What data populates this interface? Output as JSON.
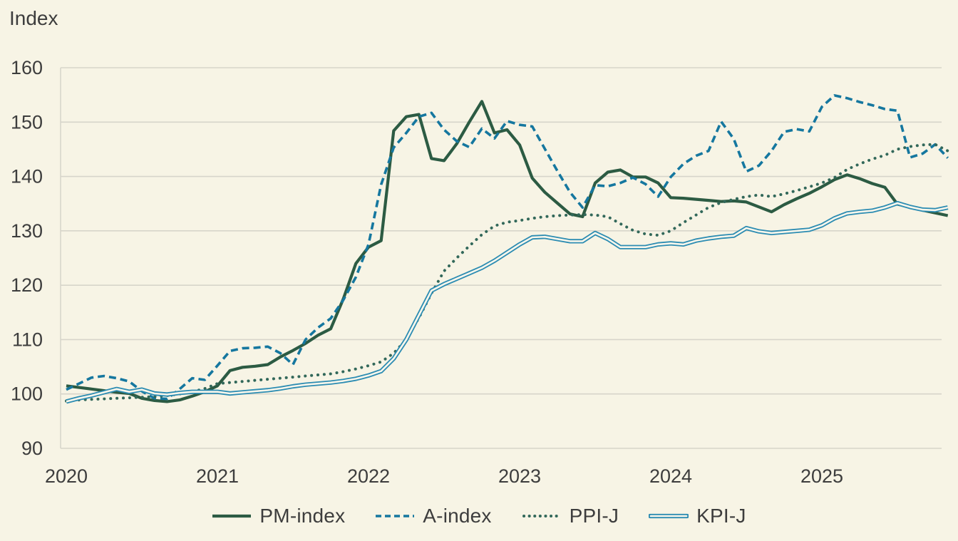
{
  "page": {
    "background_color": "#f7f4e5",
    "text_color": "#3d3d3d",
    "gridline_color": "#d7d5ca"
  },
  "chart_data": {
    "type": "line",
    "title": "Index",
    "xlabel": "",
    "ylabel": "Index",
    "grid": "horizontal",
    "legend_position": "bottom",
    "ylim": [
      90,
      160
    ],
    "y_ticks": [
      90,
      100,
      110,
      120,
      130,
      140,
      150,
      160
    ],
    "x_tick_labels": [
      "2020",
      "2021",
      "2022",
      "2023",
      "2024",
      "2025"
    ],
    "frequency": "monthly",
    "x_start": "2020-01",
    "x_end": "2025-11",
    "series": [
      {
        "name": "PM-index",
        "style": "solid",
        "color": "#2c5b43",
        "values": [
          101.5,
          101.2,
          100.9,
          100.6,
          100.3,
          100.1,
          99.2,
          98.8,
          98.6,
          98.9,
          99.6,
          100.4,
          101.5,
          104.3,
          104.9,
          105.1,
          105.4,
          106.8,
          108.0,
          109.3,
          110.8,
          112.0,
          117.5,
          124.0,
          127.0,
          128.2,
          148.4,
          151.0,
          151.4,
          143.3,
          142.9,
          146.0,
          150.0,
          153.8,
          148.0,
          148.6,
          145.8,
          139.7,
          137.1,
          135.1,
          133.1,
          132.6,
          138.8,
          140.8,
          141.2,
          139.9,
          139.9,
          138.8,
          136.1,
          136.0,
          135.8,
          135.6,
          135.4,
          135.5,
          135.3,
          134.4,
          133.5,
          134.8,
          135.9,
          136.9,
          138.1,
          139.4,
          140.3,
          139.6,
          138.7,
          138.0,
          134.9,
          134.4,
          133.8,
          133.3,
          132.8
        ]
      },
      {
        "name": "A-index",
        "style": "dashed",
        "color": "#15779f",
        "values": [
          100.8,
          101.9,
          103.0,
          103.3,
          102.9,
          102.3,
          100.5,
          99.2,
          99.1,
          100.9,
          102.9,
          102.6,
          105.2,
          107.9,
          108.4,
          108.5,
          108.7,
          107.5,
          105.4,
          110.0,
          112.2,
          113.9,
          117.3,
          121.5,
          127.5,
          138.5,
          145.3,
          148.0,
          151.0,
          151.7,
          148.6,
          146.5,
          145.4,
          148.8,
          147.0,
          150.2,
          149.5,
          149.2,
          145.1,
          141.0,
          137.1,
          134.3,
          138.4,
          138.2,
          138.8,
          139.8,
          138.6,
          136.3,
          139.9,
          142.3,
          143.8,
          144.7,
          150.1,
          146.9,
          140.9,
          142.0,
          144.7,
          148.2,
          148.7,
          148.3,
          152.8,
          154.9,
          154.4,
          153.7,
          153.1,
          152.4,
          152.1,
          143.5,
          144.2,
          145.9,
          143.4
        ]
      },
      {
        "name": "PPI-J",
        "style": "dotted",
        "color": "#32685a",
        "values": [
          98.7,
          98.9,
          99.0,
          99.1,
          99.2,
          99.3,
          99.4,
          99.5,
          99.7,
          100.0,
          100.4,
          101.0,
          101.9,
          102.1,
          102.3,
          102.5,
          102.7,
          102.9,
          103.1,
          103.3,
          103.5,
          103.7,
          104.1,
          104.6,
          105.2,
          105.9,
          107.5,
          110.0,
          114.0,
          118.5,
          122.6,
          125.0,
          127.2,
          129.3,
          130.9,
          131.6,
          131.9,
          132.3,
          132.6,
          132.8,
          132.9,
          133.0,
          132.9,
          132.6,
          131.3,
          130.1,
          129.4,
          129.2,
          130.0,
          131.5,
          132.9,
          134.3,
          135.2,
          135.8,
          136.3,
          136.6,
          136.3,
          136.8,
          137.4,
          138.1,
          138.8,
          139.8,
          141.3,
          142.3,
          143.2,
          143.9,
          145.0,
          145.5,
          145.8,
          145.9,
          144.7
        ]
      },
      {
        "name": "KPI-J",
        "style": "double",
        "color": "#2c8cb2",
        "inner_color": "#f9f7ec",
        "values": [
          98.6,
          99.2,
          99.7,
          100.3,
          100.9,
          100.4,
          100.8,
          100.1,
          99.9,
          100.2,
          100.4,
          100.4,
          100.4,
          100.1,
          100.3,
          100.5,
          100.7,
          101.0,
          101.4,
          101.7,
          101.9,
          102.1,
          102.4,
          102.8,
          103.4,
          104.2,
          106.5,
          110.0,
          114.5,
          119.0,
          120.2,
          121.2,
          122.2,
          123.2,
          124.5,
          126.0,
          127.5,
          128.8,
          128.9,
          128.5,
          128.1,
          128.1,
          129.6,
          128.5,
          127.0,
          127.0,
          127.0,
          127.5,
          127.7,
          127.5,
          128.2,
          128.6,
          128.9,
          129.1,
          130.5,
          129.9,
          129.6,
          129.8,
          130.0,
          130.2,
          131.0,
          132.3,
          133.2,
          133.5,
          133.7,
          134.3,
          135.1,
          134.4,
          133.9,
          133.8,
          134.3
        ]
      }
    ]
  }
}
